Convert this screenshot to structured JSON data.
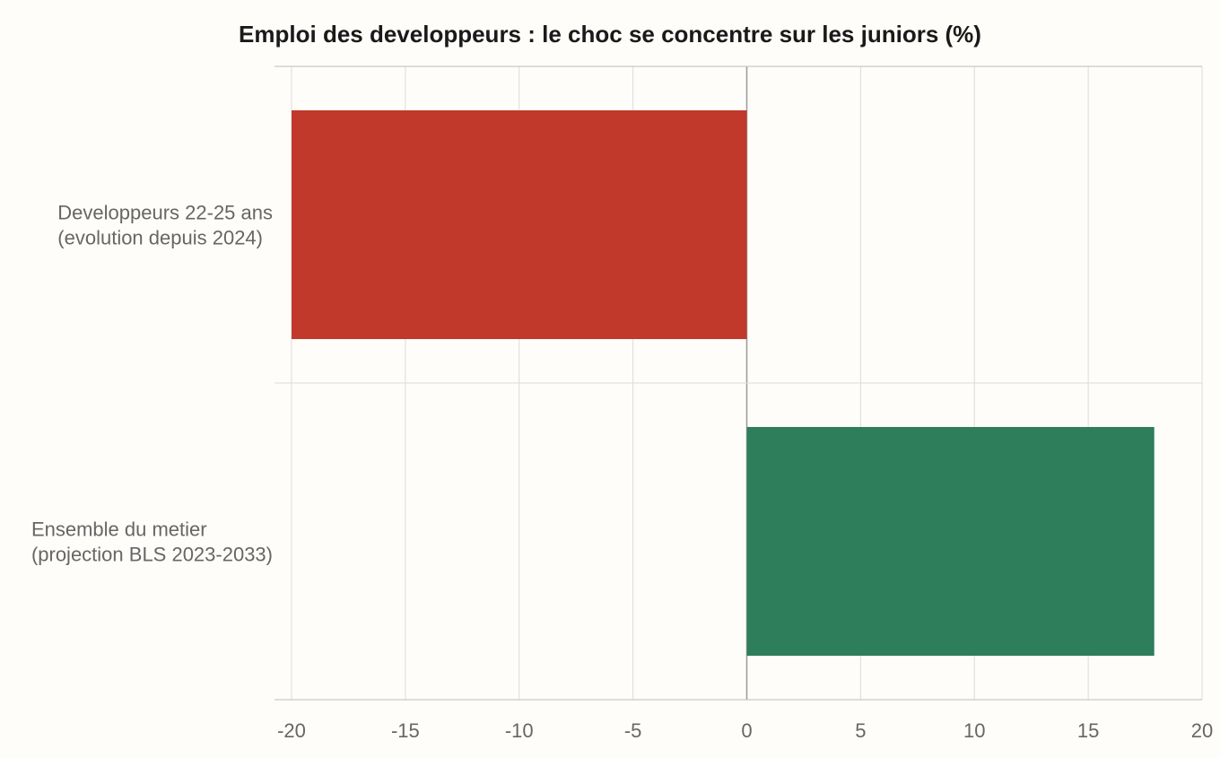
{
  "chart_data": {
    "type": "bar",
    "orientation": "horizontal",
    "title": "Emploi des developpeurs : le choc se concentre sur les juniors (%)",
    "xlabel": "",
    "ylabel": "",
    "xlim": [
      -20,
      20
    ],
    "xticks": [
      -20,
      -15,
      -10,
      -5,
      0,
      5,
      10,
      15,
      20
    ],
    "grid": true,
    "legend": "none",
    "categories": [
      {
        "lines": [
          "Developpeurs 22-25 ans",
          "(evolution depuis 2024)"
        ],
        "value": -20,
        "color": "#c0392b"
      },
      {
        "lines": [
          "Ensemble du metier",
          "(projection BLS 2023-2033)"
        ],
        "value": 17.9,
        "color": "#2e7d5b"
      }
    ]
  }
}
